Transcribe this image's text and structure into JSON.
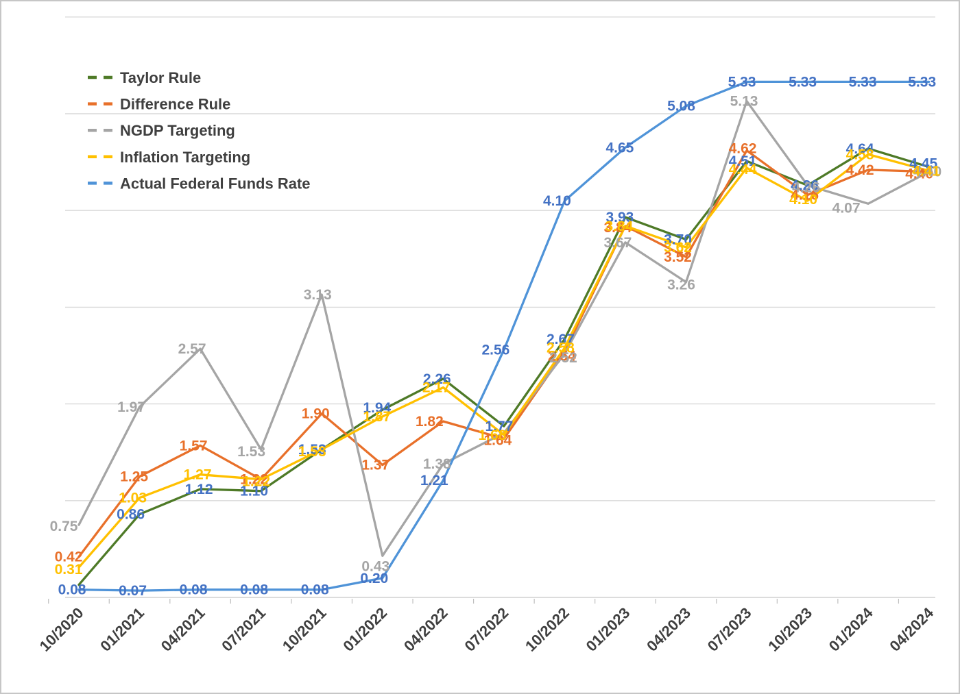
{
  "chart_data": {
    "type": "line",
    "title": "",
    "xlabel": "",
    "ylabel": "",
    "grid": true,
    "gridline_interval": 1,
    "ylim": [
      0,
      6
    ],
    "legend_position": "top-left",
    "categories": [
      "10/2020",
      "01/2021",
      "04/2021",
      "07/2021",
      "10/2021",
      "01/2022",
      "04/2022",
      "07/2022",
      "10/2022",
      "01/2023",
      "04/2023",
      "07/2023",
      "10/2023",
      "01/2024",
      "04/2024"
    ],
    "series": [
      {
        "name": "Taylor Rule",
        "line_color": "#4E7A27",
        "label_color": "#4472C4",
        "values": [
          0.13,
          0.86,
          1.12,
          1.1,
          1.53,
          1.94,
          2.26,
          1.77,
          2.67,
          3.93,
          3.7,
          4.51,
          4.26,
          4.64,
          4.45
        ],
        "labels": [
          null,
          "0.86",
          "1.12",
          "1.10",
          "1.53",
          "1.94",
          "2.26",
          "1.77",
          "2.67",
          "3.93",
          "3.70",
          "4.51",
          "4.26",
          "4.64",
          "4.45"
        ]
      },
      {
        "name": "Difference Rule",
        "line_color": "#E8702A",
        "label_color": "#E8702A",
        "values": [
          0.42,
          1.25,
          1.57,
          1.22,
          1.9,
          1.37,
          1.82,
          1.64,
          2.54,
          3.84,
          3.52,
          4.62,
          4.16,
          4.42,
          4.4
        ],
        "labels": [
          "0.42",
          "1.25",
          "1.57",
          "1.22",
          "1.90",
          "1.37",
          "1.82",
          "1.64",
          "2.54",
          "3.84",
          "3.52",
          "4.62",
          "4.16",
          "4.42",
          "4.40"
        ]
      },
      {
        "name": "NGDP Targeting",
        "line_color": "#A5A5A5",
        "label_color": "#A5A5A5",
        "values": [
          0.75,
          1.97,
          2.57,
          1.53,
          3.13,
          0.43,
          1.38,
          1.7,
          2.52,
          3.67,
          3.26,
          5.13,
          4.26,
          4.07,
          4.4
        ],
        "labels": [
          "0.75",
          "1.97",
          "2.57",
          "1.53",
          "3.13",
          "0.43",
          "1.38",
          null,
          "2.52",
          "3.67",
          "3.26",
          "5.13",
          "4.26",
          "4.07",
          "4.40"
        ]
      },
      {
        "name": "Inflation Targeting",
        "line_color": "#FFC000",
        "label_color": "#FFC000",
        "values": [
          0.31,
          1.03,
          1.27,
          1.22,
          1.53,
          1.87,
          2.17,
          1.68,
          2.58,
          3.84,
          3.62,
          4.44,
          4.1,
          4.58,
          4.41
        ],
        "labels": [
          "0.31",
          "1.03",
          "1.27",
          "1.22",
          "1.53",
          "1.87",
          "2.17",
          "1.68",
          "2.58",
          "3.84",
          "3.62",
          "4.44",
          "4.10",
          "4.58",
          "4.41"
        ]
      },
      {
        "name": "Actual Federal Funds Rate",
        "line_color": "#4F93D8",
        "label_color": "#4472C4",
        "values": [
          0.08,
          0.07,
          0.08,
          0.08,
          0.08,
          0.2,
          1.21,
          2.56,
          4.1,
          4.65,
          5.08,
          5.33,
          5.33,
          5.33,
          5.33
        ],
        "labels": [
          "0.08",
          "0.07",
          "0.08",
          "0.08",
          "0.08",
          "0.20",
          "1.21",
          "2.56",
          "4.10",
          "4.65",
          "5.08",
          "5.33",
          "5.33",
          "5.33",
          "5.33"
        ]
      }
    ],
    "colors": {
      "background": "#FFFFFF",
      "gridline": "#D9D9D9",
      "axis_line": "#D0D0D0",
      "axis_text": "#3F3F3F",
      "legend_text": "#3F3F3F",
      "border": "#C6C6C6"
    }
  }
}
